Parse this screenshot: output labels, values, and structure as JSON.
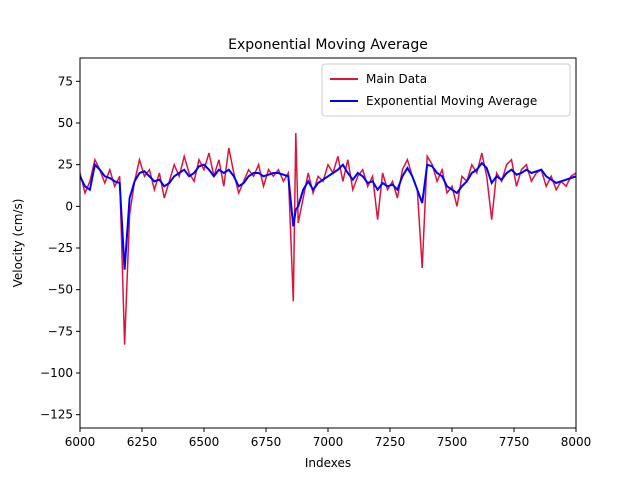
{
  "chart_data": {
    "type": "line",
    "title": "Exponential Moving Average",
    "x_label": "Indexes",
    "y_label": "Velocity (cm/s)",
    "x": [
      6000,
      6020,
      6040,
      6060,
      6080,
      6100,
      6120,
      6140,
      6160,
      6180,
      6200,
      6220,
      6240,
      6260,
      6280,
      6300,
      6320,
      6340,
      6360,
      6380,
      6400,
      6420,
      6440,
      6460,
      6480,
      6500,
      6520,
      6540,
      6560,
      6580,
      6600,
      6620,
      6640,
      6660,
      6680,
      6700,
      6720,
      6740,
      6760,
      6780,
      6800,
      6820,
      6840,
      6860,
      6870,
      6880,
      6900,
      6920,
      6940,
      6960,
      6980,
      7000,
      7020,
      7040,
      7060,
      7080,
      7100,
      7120,
      7140,
      7160,
      7180,
      7200,
      7220,
      7240,
      7260,
      7280,
      7300,
      7320,
      7340,
      7360,
      7380,
      7400,
      7420,
      7440,
      7460,
      7480,
      7500,
      7520,
      7540,
      7560,
      7580,
      7600,
      7620,
      7640,
      7660,
      7680,
      7700,
      7720,
      7740,
      7760,
      7780,
      7800,
      7820,
      7840,
      7860,
      7880,
      7900,
      7920,
      7940,
      7960,
      7980,
      8000
    ],
    "series": [
      {
        "name": "Main Data",
        "color": "#dc143c",
        "values": [
          20,
          8,
          15,
          28,
          22,
          14,
          22,
          12,
          18,
          -83,
          -5,
          15,
          28,
          18,
          22,
          10,
          20,
          5,
          15,
          25,
          18,
          30,
          20,
          15,
          28,
          22,
          32,
          18,
          28,
          12,
          35,
          20,
          8,
          15,
          22,
          18,
          25,
          12,
          22,
          18,
          22,
          15,
          20,
          -57,
          44,
          -10,
          5,
          20,
          8,
          18,
          15,
          25,
          20,
          30,
          15,
          28,
          10,
          18,
          22,
          12,
          18,
          -8,
          20,
          10,
          15,
          5,
          22,
          28,
          18,
          10,
          -37,
          30,
          25,
          15,
          22,
          8,
          12,
          0,
          18,
          15,
          25,
          20,
          32,
          18,
          -8,
          20,
          15,
          25,
          28,
          12,
          22,
          25,
          15,
          20,
          22,
          12,
          18,
          10,
          15,
          12,
          18,
          20
        ]
      },
      {
        "name": "Exponential Moving Average",
        "color": "#0000ff",
        "values": [
          18,
          12,
          10,
          25,
          22,
          18,
          17,
          15,
          14,
          -38,
          5,
          15,
          20,
          21,
          18,
          15,
          16,
          12,
          14,
          18,
          20,
          22,
          18,
          20,
          24,
          25,
          22,
          18,
          22,
          20,
          22,
          18,
          12,
          14,
          18,
          20,
          20,
          18,
          19,
          20,
          20,
          19,
          18,
          -12,
          -2,
          0,
          10,
          15,
          10,
          14,
          16,
          18,
          20,
          22,
          25,
          20,
          16,
          20,
          18,
          14,
          15,
          10,
          14,
          12,
          13,
          10,
          18,
          23,
          18,
          10,
          2,
          25,
          24,
          20,
          18,
          12,
          10,
          8,
          12,
          15,
          20,
          22,
          26,
          23,
          14,
          18,
          16,
          20,
          22,
          19,
          20,
          22,
          20,
          21,
          22,
          18,
          16,
          14,
          15,
          16,
          17,
          18
        ]
      }
    ],
    "xlim": [
      6000,
      8000
    ],
    "ylim": [
      -133,
      89
    ],
    "xticks": [
      6000,
      6250,
      6500,
      6750,
      7000,
      7250,
      7500,
      7750,
      8000
    ],
    "yticks": [
      {
        "value": -125,
        "label": "−125"
      },
      {
        "value": -100,
        "label": "−100"
      },
      {
        "value": -75,
        "label": "−75"
      },
      {
        "value": -50,
        "label": "−50"
      },
      {
        "value": -25,
        "label": "−25"
      },
      0,
      25,
      50,
      75
    ],
    "legend": "upper right",
    "grid": false
  }
}
